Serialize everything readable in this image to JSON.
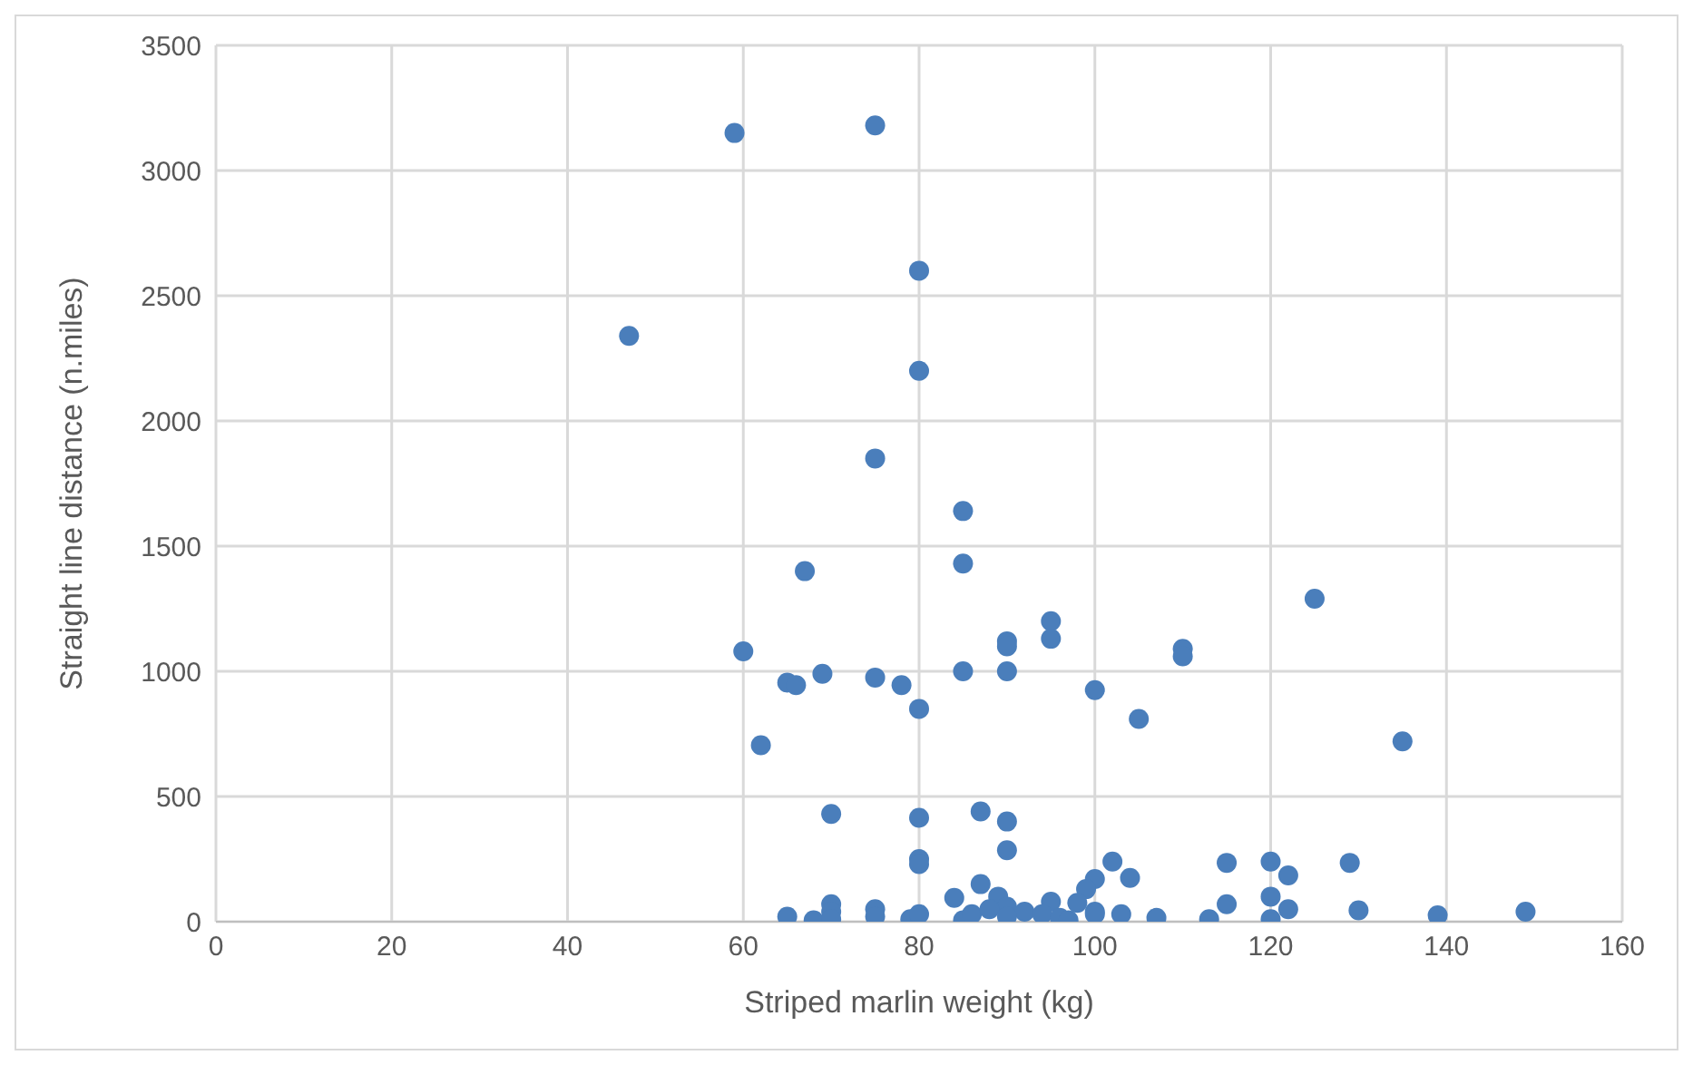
{
  "chart_data": {
    "type": "scatter",
    "xlabel": "Striped marlin weight (kg)",
    "ylabel": "Straight line distance (n.miles)",
    "xlim": [
      0,
      160
    ],
    "xticks": [
      0,
      20,
      40,
      60,
      80,
      100,
      120,
      140,
      160
    ],
    "ylim": [
      0,
      3500
    ],
    "yticks": [
      0,
      500,
      1000,
      1500,
      2000,
      2500,
      3000,
      3500
    ],
    "grid": true,
    "marker": "circle",
    "series": [
      {
        "color": "#4a7ebb",
        "x": [
          47,
          59,
          75,
          80,
          80,
          75,
          85,
          85,
          67,
          95,
          95,
          90,
          90,
          125,
          110,
          110,
          60,
          69,
          65,
          66,
          75,
          78,
          85,
          90,
          80,
          100,
          105,
          62,
          135,
          70,
          80,
          87,
          90,
          90,
          80,
          80,
          102,
          115,
          120,
          129,
          122,
          104,
          100,
          99,
          87,
          84,
          89,
          90,
          92,
          95,
          98,
          100,
          103,
          107,
          113,
          115,
          120,
          122,
          120,
          130,
          139,
          149,
          65,
          68,
          70,
          70,
          70,
          75,
          75,
          79,
          80,
          85,
          86,
          88,
          90,
          94,
          96,
          97,
          100
        ],
        "values": [
          2340,
          3150,
          3180,
          2600,
          2200,
          1850,
          1640,
          1430,
          1400,
          1200,
          1130,
          1120,
          1100,
          1290,
          1090,
          1060,
          1080,
          990,
          955,
          945,
          975,
          945,
          1000,
          1000,
          850,
          925,
          810,
          705,
          720,
          430,
          415,
          440,
          400,
          285,
          250,
          230,
          240,
          235,
          240,
          235,
          185,
          175,
          170,
          130,
          150,
          95,
          100,
          60,
          40,
          80,
          75,
          40,
          30,
          15,
          10,
          70,
          100,
          50,
          10,
          45,
          25,
          40,
          20,
          5,
          70,
          40,
          10,
          50,
          20,
          10,
          30,
          5,
          30,
          50,
          20,
          30,
          15,
          5,
          30
        ]
      }
    ]
  }
}
